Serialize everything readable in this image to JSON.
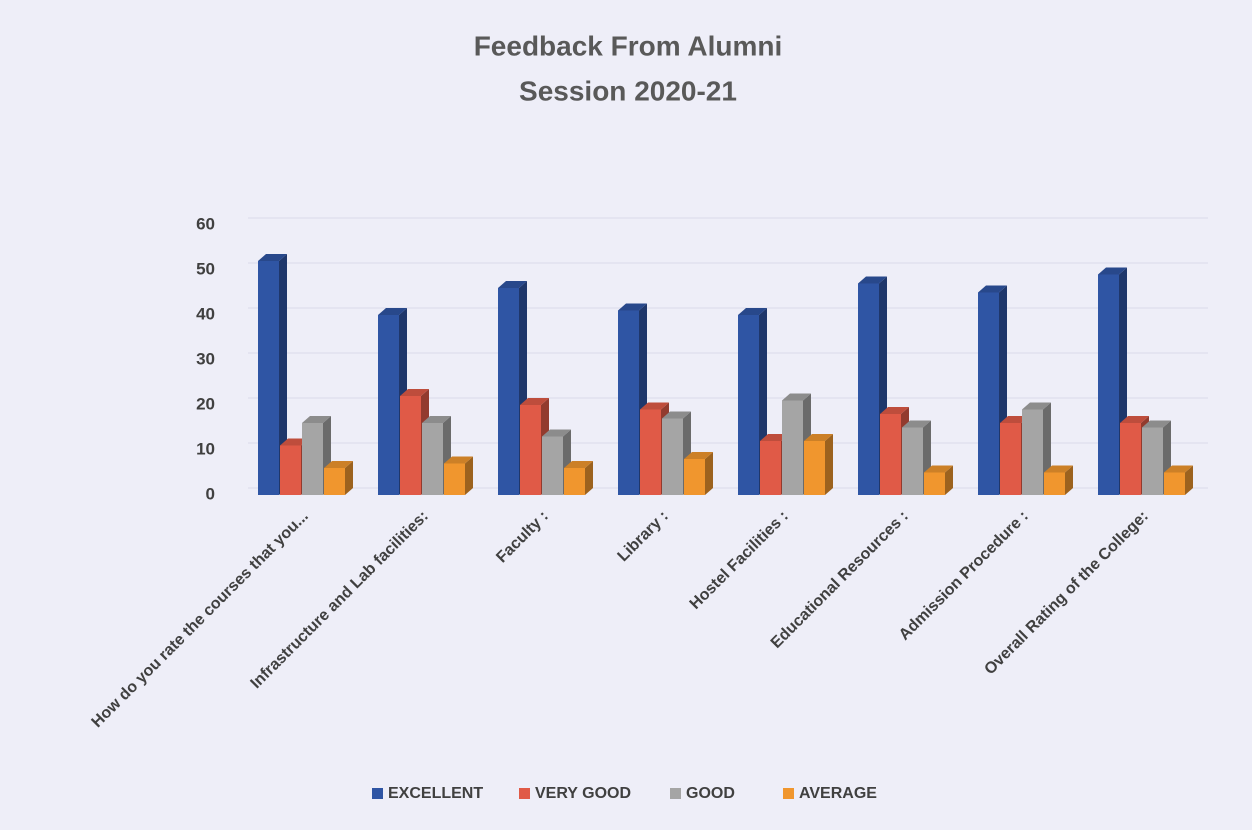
{
  "chart_data": {
    "type": "bar3d",
    "title": "Feedback From Alumni",
    "subtitle": "Session 2020-21",
    "categories": [
      "How do you rate the courses that you...",
      "Infrastructure and Lab facilities:",
      "Faculty :",
      "Library  :",
      "Hostel Facilities :",
      "Educational Resources :",
      "Admission Procedure :",
      "Overall Rating of the College:"
    ],
    "series": [
      {
        "name": "EXCELLENT",
        "color": "#2f55a4",
        "values": [
          52,
          40,
          46,
          41,
          40,
          47,
          45,
          49
        ]
      },
      {
        "name": "VERY GOOD",
        "color": "#e05a47",
        "values": [
          11,
          22,
          20,
          19,
          12,
          18,
          16,
          16
        ]
      },
      {
        "name": "GOOD",
        "color": "#a5a5a5",
        "values": [
          16,
          16,
          13,
          17,
          21,
          15,
          19,
          15
        ]
      },
      {
        "name": "AVERAGE",
        "color": "#f0962e",
        "values": [
          6,
          7,
          6,
          8,
          12,
          5,
          5,
          5
        ]
      }
    ],
    "ylim": [
      0,
      60
    ],
    "yticks": [
      0,
      10,
      20,
      30,
      40,
      50,
      60
    ],
    "grid": true,
    "legend": "bottom"
  }
}
